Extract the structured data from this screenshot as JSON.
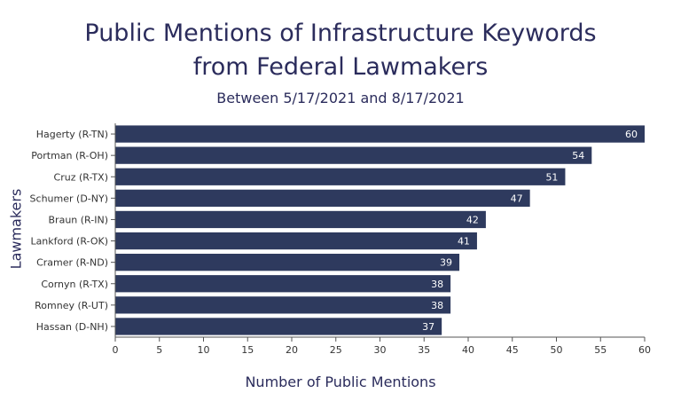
{
  "chart_data": {
    "type": "bar",
    "orientation": "horizontal",
    "title_line1": "Public Mentions of Infrastructure Keywords",
    "title_line2": "from Federal Lawmakers",
    "subtitle": "Between 5/17/2021 and 8/17/2021",
    "xlabel": "Number of Public Mentions",
    "ylabel": "Lawmakers",
    "categories": [
      "Hagerty (R-TN)",
      "Portman (R-OH)",
      "Cruz (R-TX)",
      "Schumer (D-NY)",
      "Braun (R-IN)",
      "Lankford (R-OK)",
      "Cramer (R-ND)",
      "Cornyn (R-TX)",
      "Romney (R-UT)",
      "Hassan (D-NH)"
    ],
    "values": [
      60,
      54,
      51,
      47,
      42,
      41,
      39,
      38,
      38,
      37
    ],
    "xlim": [
      0,
      60
    ],
    "xticks": [
      0,
      5,
      10,
      15,
      20,
      25,
      30,
      35,
      40,
      45,
      50,
      55,
      60
    ],
    "grid": false,
    "bar_color": "#2e3a5e",
    "text_color": "#2b2c5c"
  }
}
